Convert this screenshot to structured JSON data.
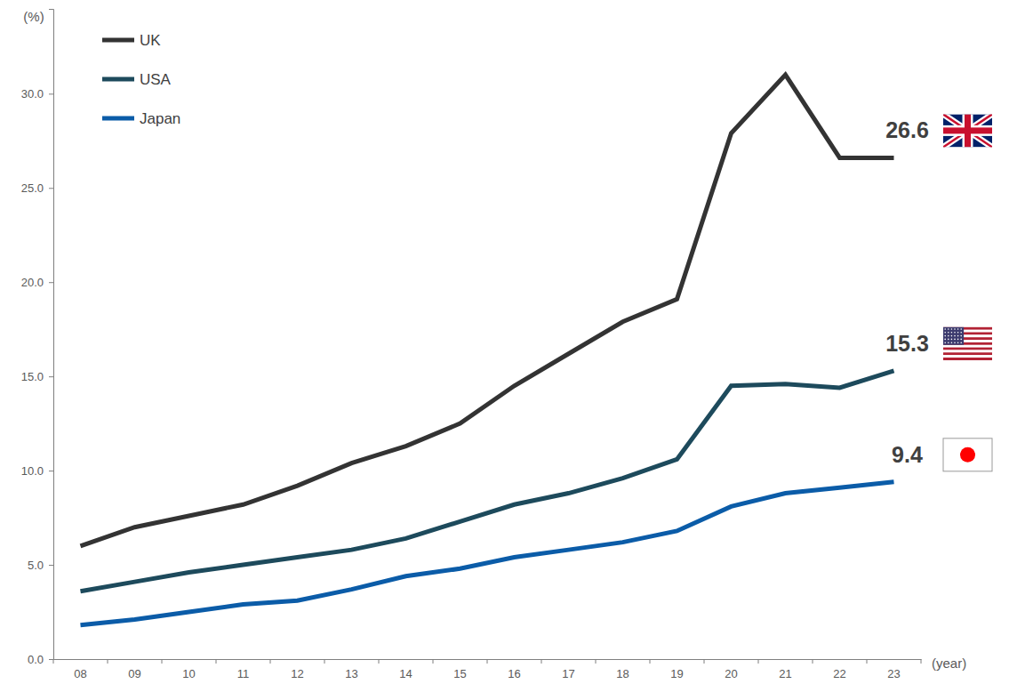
{
  "chart_data": {
    "type": "line",
    "y_label": "(%)",
    "x_label": "(year)",
    "categories": [
      "08",
      "09",
      "10",
      "11",
      "12",
      "13",
      "14",
      "15",
      "16",
      "17",
      "18",
      "19",
      "20",
      "21",
      "22",
      "23"
    ],
    "series": [
      {
        "name": "UK",
        "color": "#333333",
        "annotation": "26.6",
        "values": [
          6.0,
          7.0,
          7.6,
          8.2,
          9.2,
          10.4,
          11.3,
          12.5,
          14.5,
          16.2,
          17.9,
          19.1,
          27.9,
          31.0,
          26.6,
          26.6
        ]
      },
      {
        "name": "USA",
        "color": "#1d4a5c",
        "annotation": "15.3",
        "values": [
          3.6,
          4.1,
          4.6,
          5.0,
          5.4,
          5.8,
          6.4,
          7.3,
          8.2,
          8.8,
          9.6,
          10.6,
          14.5,
          14.6,
          14.4,
          15.3
        ]
      },
      {
        "name": "Japan",
        "color": "#0b5ca8",
        "annotation": "9.4",
        "values": [
          1.8,
          2.1,
          2.5,
          2.9,
          3.1,
          3.7,
          4.4,
          4.8,
          5.4,
          5.8,
          6.2,
          6.8,
          8.1,
          8.8,
          9.1,
          9.4
        ]
      }
    ],
    "ylim": [
      0,
      34.5
    ],
    "yticks": [
      {
        "value": 0,
        "label": "0.0"
      },
      {
        "value": 5,
        "label": "5.0"
      },
      {
        "value": 10,
        "label": "10.0"
      },
      {
        "value": 15,
        "label": "15.0"
      },
      {
        "value": 20,
        "label": "20.0"
      },
      {
        "value": 25,
        "label": "25.0"
      },
      {
        "value": 30,
        "label": "30.0"
      }
    ],
    "grid": false,
    "legend": "top-left"
  }
}
